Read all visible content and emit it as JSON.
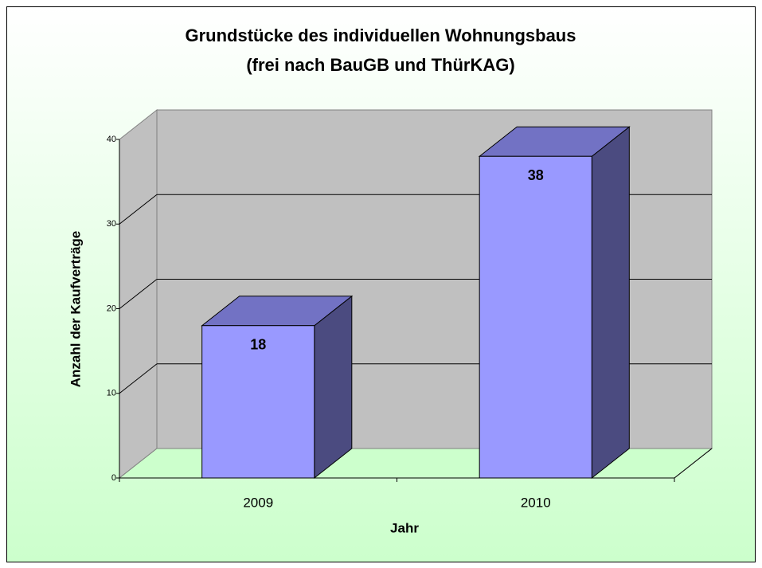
{
  "chart_data": {
    "type": "bar3d",
    "title": "Grundstücke des individuellen Wohnungsbaus",
    "subtitle": "(frei nach BauGB und ThürKAG)",
    "xlabel": "Jahr",
    "ylabel": "Anzahl der Kaufverträge",
    "categories": [
      "2009",
      "2010"
    ],
    "values": [
      18,
      38
    ],
    "color": "#9999ff",
    "ylim": [
      0,
      40
    ],
    "yticks": [
      0,
      10,
      20,
      30,
      40
    ],
    "grid": true
  }
}
